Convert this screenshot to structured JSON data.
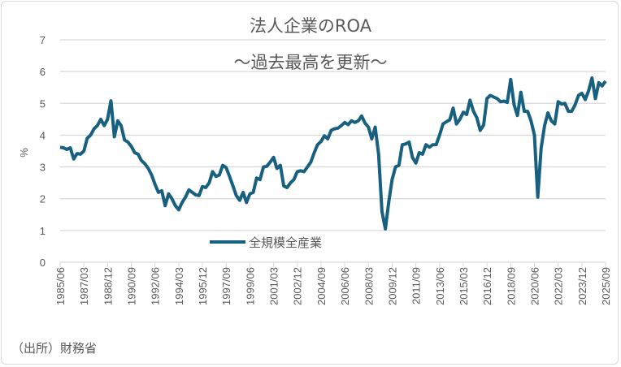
{
  "chart_data": {
    "type": "line",
    "title": "法人企業のROA",
    "subtitle": "～過去最高を更新～",
    "ylabel": "%",
    "xlabel": "",
    "ylim": [
      0,
      7
    ],
    "yticks": [
      0,
      1,
      2,
      3,
      4,
      5,
      6,
      7
    ],
    "grid": true,
    "legend_placement": "bottom-center inside",
    "x_start": "1985/06",
    "x_frequency": "quarterly",
    "xtick_labels": [
      "1985/06",
      "1987/03",
      "1988/12",
      "1990/09",
      "1992/06",
      "1994/03",
      "1995/12",
      "1997/09",
      "1999/06",
      "2001/03",
      "2002/12",
      "2004/09",
      "2006/06",
      "2008/03",
      "2009/12",
      "2011/09",
      "2013/06",
      "2015/03",
      "2016/12",
      "2018/09",
      "2020/06",
      "2022/03",
      "2023/12",
      "2025/09"
    ],
    "series": [
      {
        "name": "全規模全産業",
        "color": "#17607f",
        "values": [
          3.62,
          3.6,
          3.55,
          3.6,
          3.25,
          3.42,
          3.4,
          3.5,
          3.9,
          4.0,
          4.2,
          4.3,
          4.5,
          4.3,
          4.5,
          5.08,
          3.95,
          4.45,
          4.3,
          3.85,
          3.78,
          3.65,
          3.45,
          3.4,
          3.2,
          3.1,
          2.95,
          2.75,
          2.45,
          2.2,
          2.25,
          1.78,
          2.15,
          2.0,
          1.78,
          1.65,
          1.88,
          2.05,
          2.28,
          2.2,
          2.12,
          2.1,
          2.38,
          2.35,
          2.5,
          2.85,
          2.7,
          2.75,
          3.05,
          2.98,
          2.7,
          2.4,
          2.1,
          1.95,
          2.2,
          1.88,
          2.15,
          2.2,
          2.65,
          2.6,
          3.0,
          3.02,
          3.15,
          3.3,
          2.95,
          3.05,
          2.4,
          2.35,
          2.5,
          2.6,
          2.85,
          2.88,
          2.85,
          3.0,
          3.15,
          3.45,
          3.7,
          3.8,
          3.98,
          3.88,
          4.15,
          4.2,
          4.22,
          4.3,
          4.4,
          4.33,
          4.45,
          4.4,
          4.45,
          4.6,
          4.38,
          4.25,
          3.88,
          4.25,
          3.4,
          1.6,
          1.05,
          1.9,
          2.6,
          3.0,
          3.05,
          3.7,
          3.72,
          3.78,
          3.3,
          3.12,
          3.45,
          3.4,
          3.7,
          3.62,
          3.7,
          3.7,
          4.0,
          4.35,
          4.42,
          4.48,
          4.85,
          4.35,
          4.5,
          4.72,
          4.65,
          5.1,
          4.75,
          4.55,
          4.15,
          4.32,
          5.15,
          5.25,
          5.2,
          5.15,
          5.05,
          5.07,
          5.03,
          5.75,
          4.95,
          4.62,
          5.35,
          4.75,
          4.75,
          4.45,
          4.0,
          2.05,
          3.6,
          4.3,
          4.7,
          4.45,
          4.35,
          5.05,
          4.98,
          5.0,
          4.75,
          4.75,
          4.95,
          5.25,
          5.32,
          5.12,
          5.4,
          5.8,
          5.15,
          5.65,
          5.55,
          5.7
        ]
      }
    ],
    "source": "（出所）財務省"
  }
}
